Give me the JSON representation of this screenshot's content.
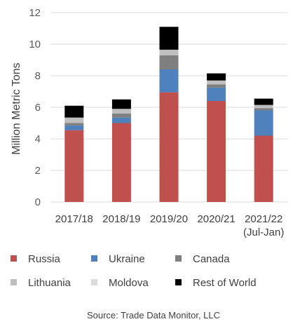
{
  "chart_data": {
    "type": "bar",
    "stacked": true,
    "categories": [
      "2017/18",
      "2018/19",
      "2019/20",
      "2020/21",
      "2021/22\n(Jul-Jan)"
    ],
    "ylabel": "Million Metric Tons",
    "xlabel": "",
    "ylim": [
      0,
      12
    ],
    "yticks": [
      0,
      2,
      4,
      6,
      8,
      10,
      12
    ],
    "grid": true,
    "legend_position": "bottom",
    "series": [
      {
        "name": "Russia",
        "color": "#c0504d",
        "values": [
          4.55,
          5.0,
          6.95,
          6.4,
          4.2
        ]
      },
      {
        "name": "Ukraine",
        "color": "#4f81bd",
        "values": [
          0.3,
          0.35,
          1.45,
          0.85,
          1.6
        ]
      },
      {
        "name": "Canada",
        "color": "#7f7f7f",
        "values": [
          0.15,
          0.25,
          0.9,
          0.2,
          0.15
        ]
      },
      {
        "name": "Lithuania",
        "color": "#bfbfbf",
        "values": [
          0.35,
          0.3,
          0.35,
          0.25,
          0.2
        ]
      },
      {
        "name": "Moldova",
        "color": "#dcdcdc",
        "values": [
          0.0,
          0.0,
          0.0,
          0.0,
          0.0
        ]
      },
      {
        "name": "Rest of World",
        "color": "#000000",
        "values": [
          0.75,
          0.6,
          1.45,
          0.45,
          0.4
        ]
      }
    ],
    "source_note": "Source: Trade Data Monitor, LLC"
  }
}
